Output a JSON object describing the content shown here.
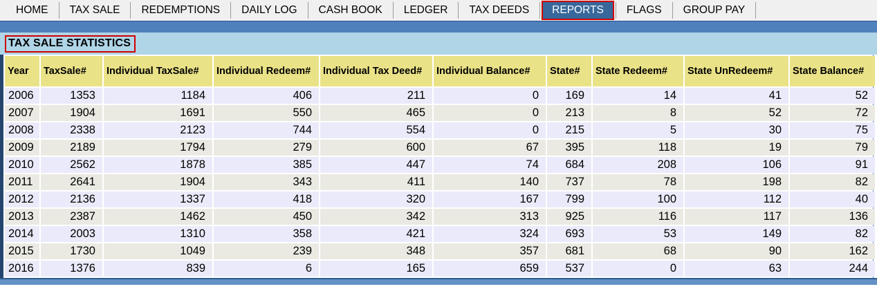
{
  "nav": {
    "items": [
      {
        "label": "HOME",
        "active": false
      },
      {
        "label": "TAX SALE",
        "active": false
      },
      {
        "label": "REDEMPTIONS",
        "active": false
      },
      {
        "label": "DAILY LOG",
        "active": false
      },
      {
        "label": "CASH BOOK",
        "active": false
      },
      {
        "label": "LEDGER",
        "active": false
      },
      {
        "label": "TAX DEEDS",
        "active": false
      },
      {
        "label": "REPORTS",
        "active": true
      },
      {
        "label": "FLAGS",
        "active": false
      },
      {
        "label": "GROUP PAY",
        "active": false
      }
    ]
  },
  "page": {
    "title": "TAX SALE STATISTICS"
  },
  "colors": {
    "active_tab_bg": "#38689B",
    "highlight_border_red": "#D10000",
    "strip_blue": "#4F81BD",
    "title_bar_blue": "#AFD5E7",
    "header_yellow": "#EAE287",
    "row_lavender": "#EAEAFA",
    "row_gray": "#EAEAE2"
  },
  "table": {
    "columns": [
      "Year",
      "TaxSale#",
      "Individual TaxSale#",
      "Individual Redeem#",
      "Individual Tax Deed#",
      "Individual Balance#",
      "State#",
      "State Redeem#",
      "State UnRedeem#",
      "State Balance#"
    ],
    "rows": [
      {
        "cells": [
          2006,
          1353,
          1184,
          406,
          211,
          0,
          169,
          14,
          41,
          52
        ]
      },
      {
        "cells": [
          2007,
          1904,
          1691,
          550,
          465,
          0,
          213,
          8,
          52,
          72
        ]
      },
      {
        "cells": [
          2008,
          2338,
          2123,
          744,
          554,
          0,
          215,
          5,
          30,
          75
        ]
      },
      {
        "cells": [
          2009,
          2189,
          1794,
          279,
          600,
          67,
          395,
          118,
          19,
          79
        ]
      },
      {
        "cells": [
          2010,
          2562,
          1878,
          385,
          447,
          74,
          684,
          208,
          106,
          91
        ]
      },
      {
        "cells": [
          2011,
          2641,
          1904,
          343,
          411,
          140,
          737,
          78,
          198,
          82
        ]
      },
      {
        "cells": [
          2012,
          2136,
          1337,
          418,
          320,
          167,
          799,
          100,
          112,
          40
        ]
      },
      {
        "cells": [
          2013,
          2387,
          1462,
          450,
          342,
          313,
          925,
          116,
          117,
          136
        ]
      },
      {
        "cells": [
          2014,
          2003,
          1310,
          358,
          421,
          324,
          693,
          53,
          149,
          82
        ]
      },
      {
        "cells": [
          2015,
          1730,
          1049,
          239,
          348,
          357,
          681,
          68,
          90,
          162
        ]
      },
      {
        "cells": [
          2016,
          1376,
          839,
          6,
          165,
          659,
          537,
          0,
          63,
          244
        ]
      }
    ]
  }
}
